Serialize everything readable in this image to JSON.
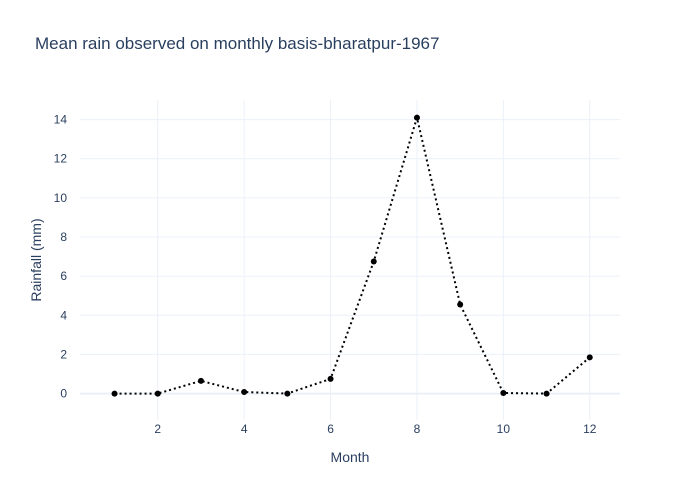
{
  "chart_data": {
    "type": "line",
    "title": "Mean rain observed on monthly basis-bharatpur-1967",
    "xlabel": "Month",
    "ylabel": "Rainfall (mm)",
    "xlim": [
      0.2,
      12.7
    ],
    "ylim": [
      -1.35,
      15
    ],
    "xticks": [
      2,
      4,
      6,
      8,
      10,
      12
    ],
    "yticks": [
      0,
      2,
      4,
      6,
      8,
      10,
      12,
      14
    ],
    "grid": true,
    "line_style": "dotted",
    "line_color": "#000000",
    "marker": "circle",
    "series": [
      {
        "x": [
          1,
          2,
          3,
          4,
          5,
          6,
          7,
          8,
          9,
          10,
          11,
          12
        ],
        "y": [
          0,
          0,
          0.65,
          0.08,
          0,
          0.75,
          6.75,
          14.1,
          4.55,
          0.03,
          0,
          1.85
        ]
      }
    ]
  }
}
